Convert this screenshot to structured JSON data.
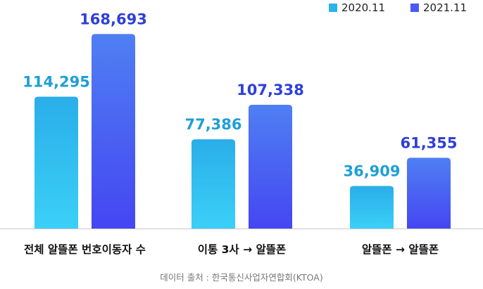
{
  "chart_data": {
    "type": "bar",
    "categories": [
      "전체 알뜰폰 번호이동자 수",
      "이통 3사 → 알뜰폰",
      "알뜰폰 → 알뜰폰"
    ],
    "series": [
      {
        "name": "2020.11",
        "values": [
          114295,
          77386,
          36909
        ],
        "labels": [
          "114,295",
          "77,386",
          "36,909"
        ],
        "color": "#2ab4ea"
      },
      {
        "name": "2021.11",
        "values": [
          168693,
          107338,
          61355
        ],
        "labels": [
          "168,693",
          "107,338",
          "61,355"
        ],
        "color": "#4a5af2"
      }
    ],
    "ylim": [
      0,
      180000
    ],
    "grid": false,
    "legend_position": "top-right",
    "source": "데이터 출처 : 한국통신사업자연합회(KTOA)"
  }
}
